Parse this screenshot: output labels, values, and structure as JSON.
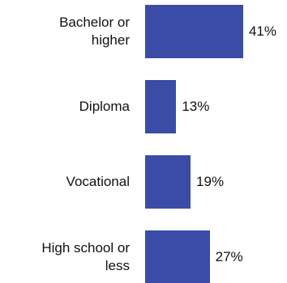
{
  "chart_data": {
    "type": "bar",
    "orientation": "horizontal",
    "categories": [
      "Bachelor or higher",
      "Diploma",
      "Vocational",
      "High school or less"
    ],
    "values": [
      41,
      13,
      19,
      27
    ],
    "value_labels": [
      "41%",
      "13%",
      "19%",
      "27%"
    ],
    "color": "#3b4ca6"
  }
}
